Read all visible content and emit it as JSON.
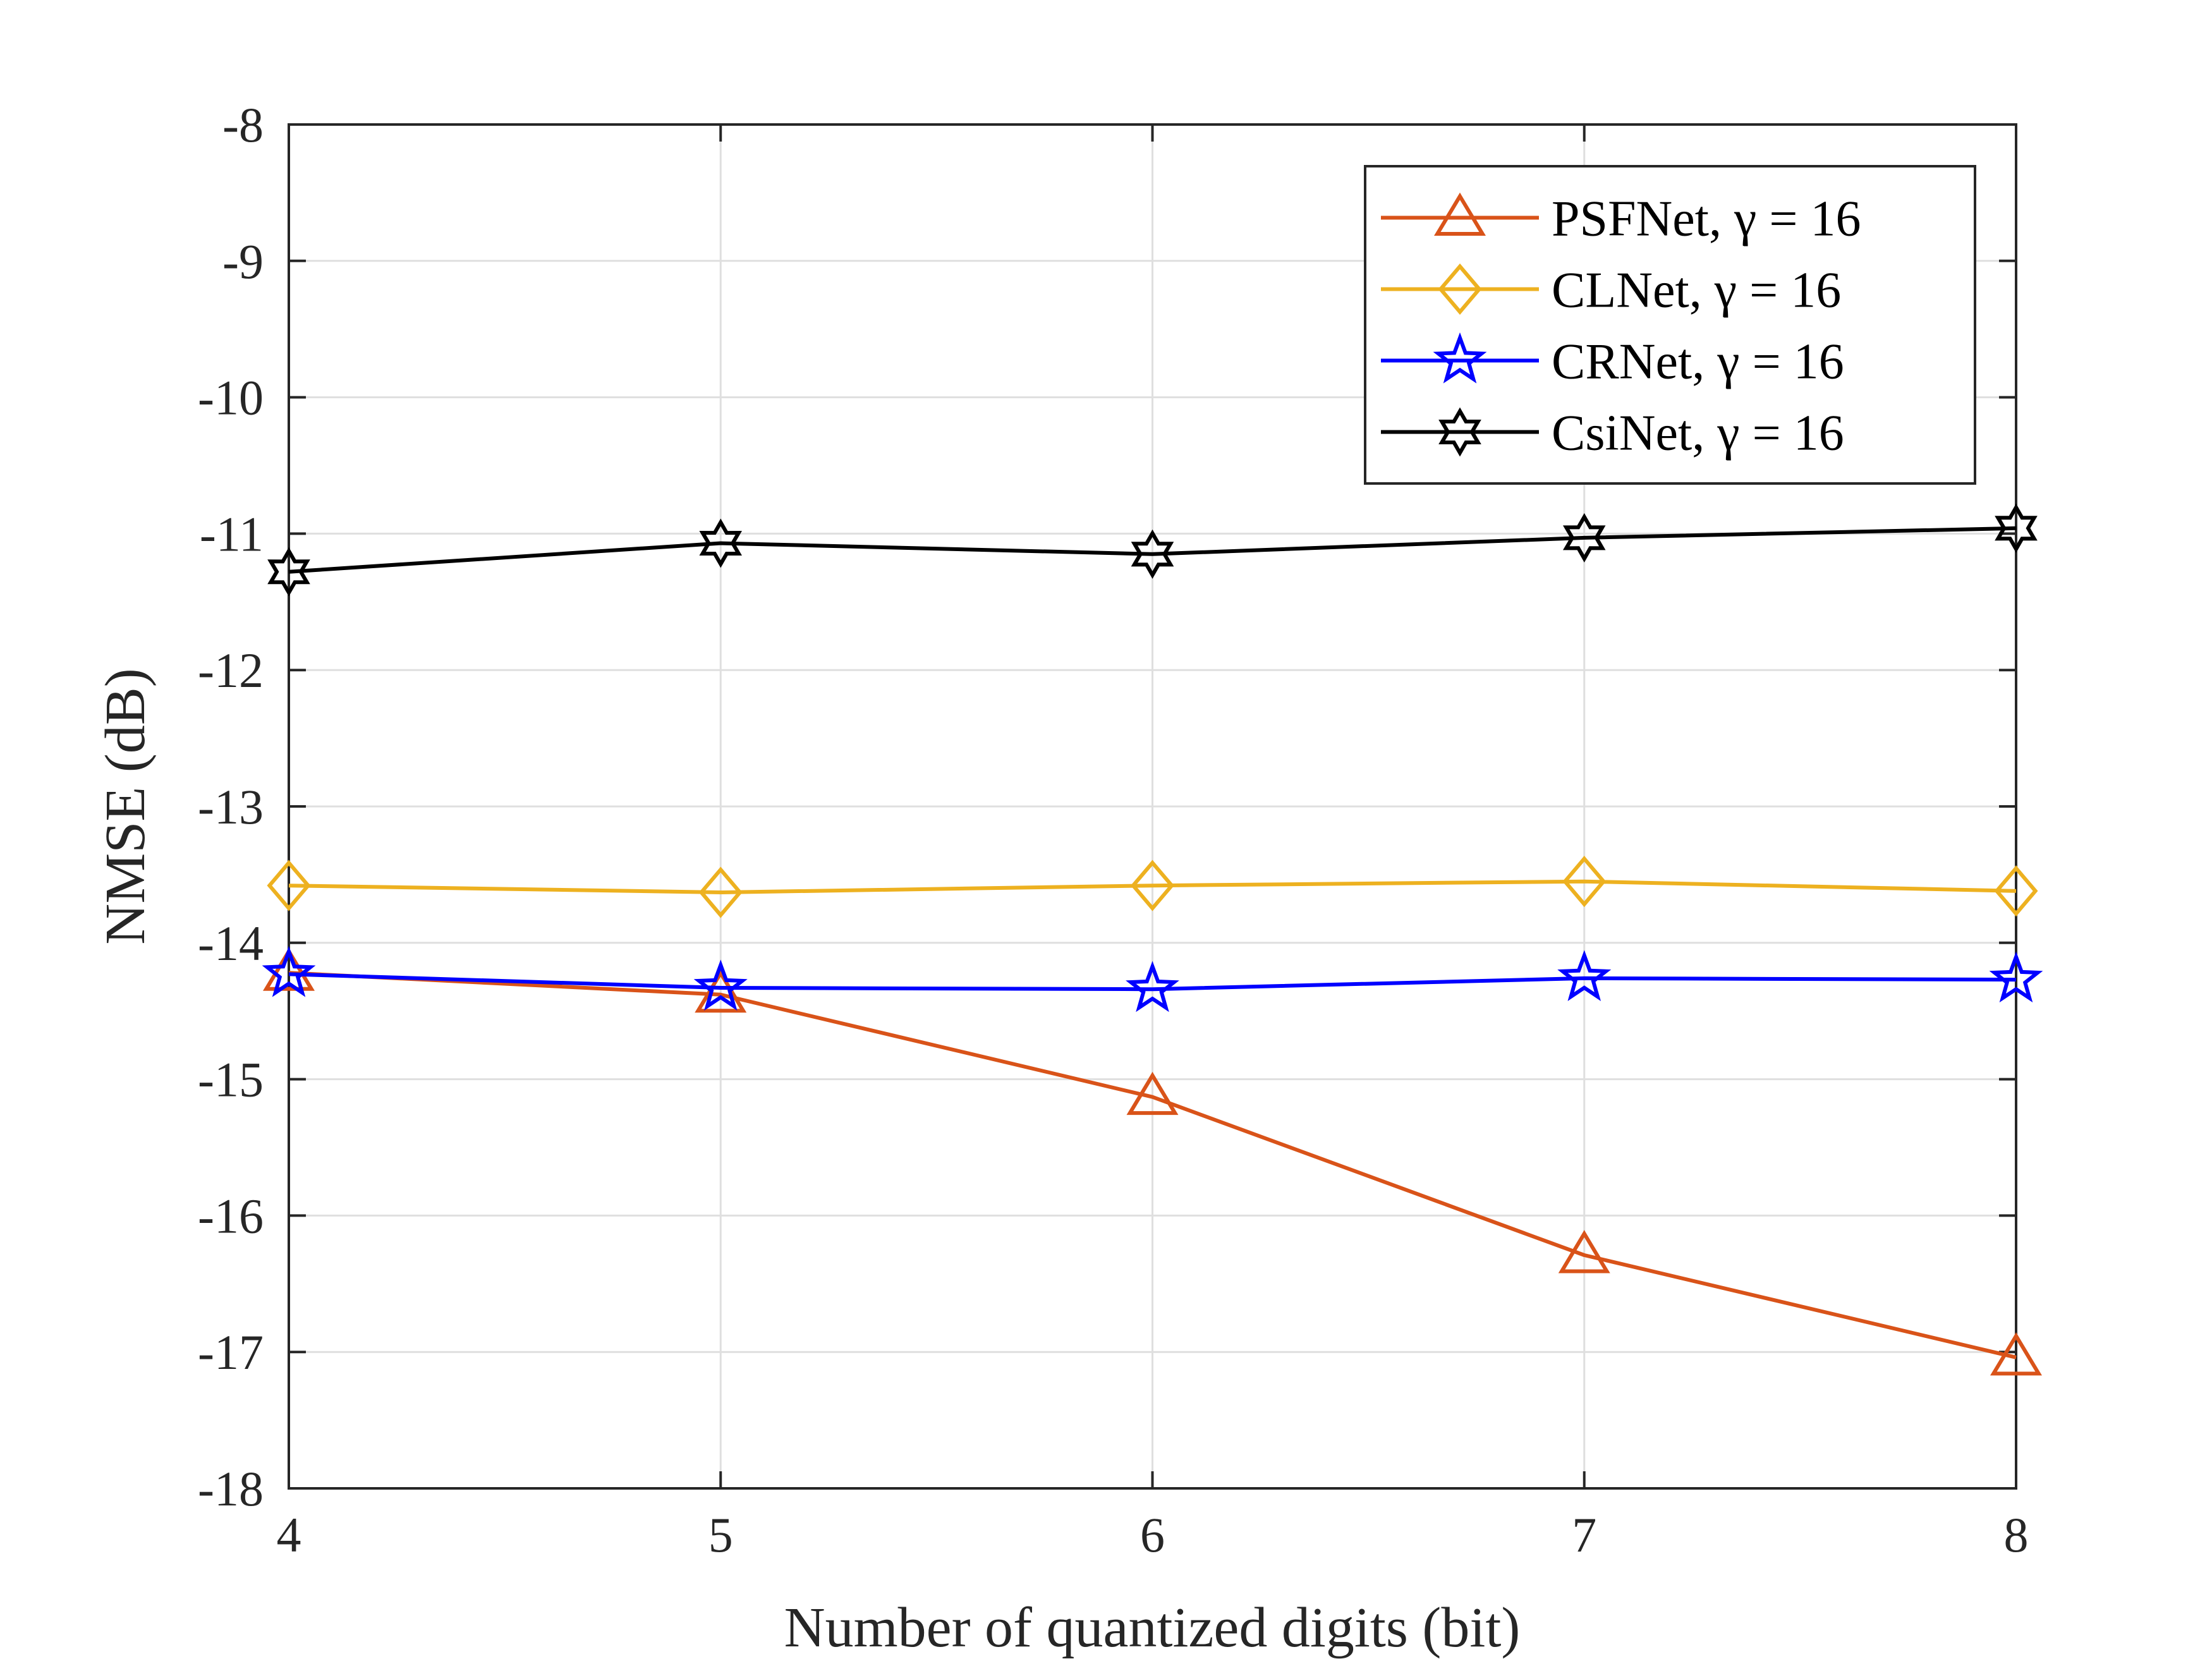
{
  "chart_data": {
    "type": "line",
    "title": "",
    "xlabel": "Number of quantized digits (bit)",
    "ylabel": "NMSE (dB)",
    "x": [
      4,
      5,
      6,
      7,
      8
    ],
    "xlim": [
      4,
      8
    ],
    "ylim": [
      -18,
      -8
    ],
    "xticks": [
      4,
      5,
      6,
      7,
      8
    ],
    "yticks": [
      -8,
      -9,
      -10,
      -11,
      -12,
      -13,
      -14,
      -15,
      -16,
      -17,
      -18
    ],
    "grid": true,
    "legend_position": "top-right",
    "series": [
      {
        "name": "PSFNet, γ = 16",
        "color": "#D95319",
        "marker": "triangle",
        "values": [
          -14.22,
          -14.38,
          -15.13,
          -16.29,
          -17.04
        ]
      },
      {
        "name": "CLNet, γ = 16",
        "color": "#EDB120",
        "marker": "diamond",
        "values": [
          -13.58,
          -13.63,
          -13.58,
          -13.55,
          -13.62
        ]
      },
      {
        "name": "CRNet, γ = 16",
        "color": "#0000FF",
        "marker": "pentagram",
        "values": [
          -14.23,
          -14.33,
          -14.34,
          -14.26,
          -14.27
        ]
      },
      {
        "name": "CsiNet, γ = 16",
        "color": "#000000",
        "marker": "hexagram",
        "values": [
          -11.28,
          -11.07,
          -11.15,
          -11.03,
          -10.96
        ]
      }
    ]
  }
}
